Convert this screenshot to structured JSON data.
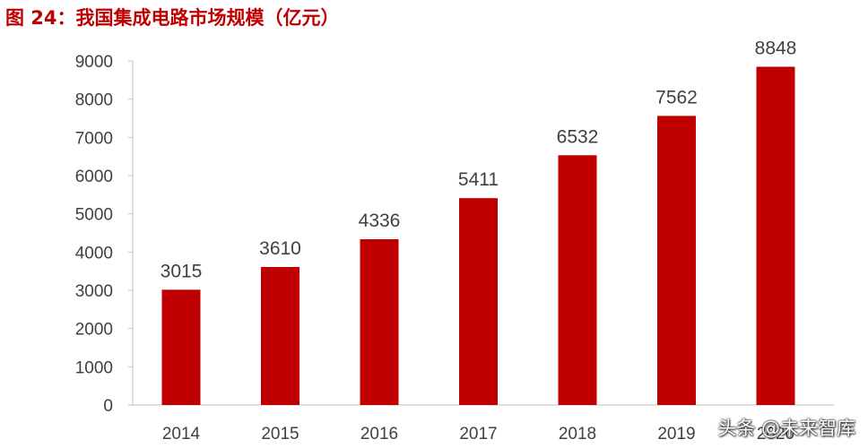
{
  "chart_data": {
    "type": "bar",
    "title": "图 24：我国集成电路市场规模（亿元）",
    "categories": [
      "2014",
      "2015",
      "2016",
      "2017",
      "2018",
      "2019",
      "2020"
    ],
    "values": [
      3015,
      3610,
      4336,
      5411,
      6532,
      7562,
      8848
    ],
    "ylim": [
      0,
      9000
    ],
    "yticks": [
      0,
      1000,
      2000,
      3000,
      4000,
      5000,
      6000,
      7000,
      8000,
      9000
    ],
    "grid": false,
    "legend": "none",
    "bar_color": "#c00000"
  },
  "watermark": "头条 @未来智库"
}
